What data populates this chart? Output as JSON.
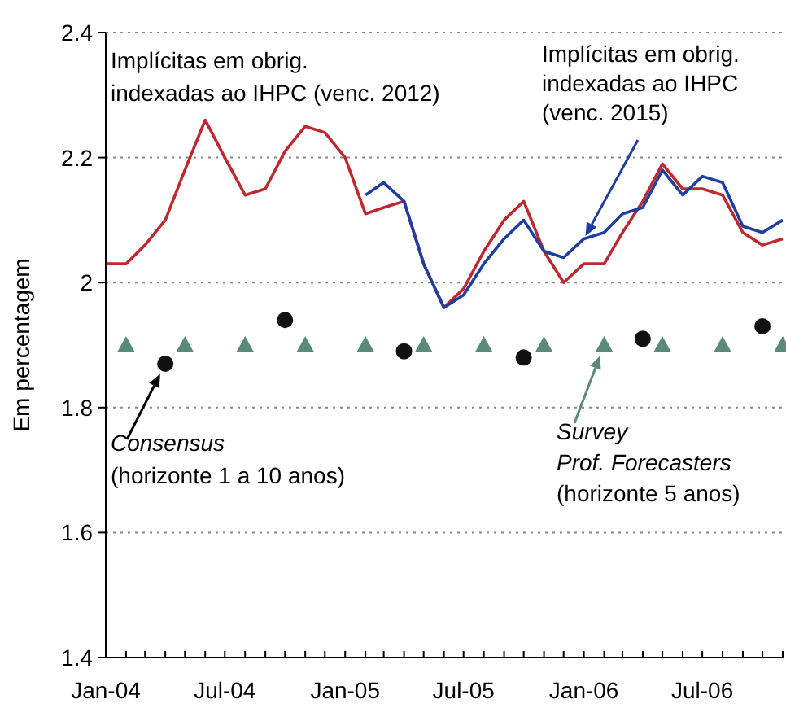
{
  "chart_data": {
    "type": "line",
    "ylabel": "Em percentagem",
    "xlim": [
      "2004-01",
      "2006-11"
    ],
    "ylim": [
      1.4,
      2.4
    ],
    "yticks": [
      1.4,
      1.6,
      1.8,
      2.0,
      2.2,
      2.4
    ],
    "grid": "y",
    "line_style": "solid",
    "marker": "none",
    "xticks": [
      {
        "value": "2004-01",
        "label": "Jan-04"
      },
      {
        "value": "2004-02",
        "label": null
      },
      {
        "value": "2004-03",
        "label": null
      },
      {
        "value": "2004-04",
        "label": null
      },
      {
        "value": "2004-05",
        "label": null
      },
      {
        "value": "2004-06",
        "label": null
      },
      {
        "value": "2004-07",
        "label": "Jul-04"
      },
      {
        "value": "2004-08",
        "label": null
      },
      {
        "value": "2004-09",
        "label": null
      },
      {
        "value": "2004-10",
        "label": null
      },
      {
        "value": "2004-11",
        "label": null
      },
      {
        "value": "2004-12",
        "label": null
      },
      {
        "value": "2005-01",
        "label": "Jan-05"
      },
      {
        "value": "2005-02",
        "label": null
      },
      {
        "value": "2005-03",
        "label": null
      },
      {
        "value": "2005-04",
        "label": null
      },
      {
        "value": "2005-05",
        "label": null
      },
      {
        "value": "2005-06",
        "label": null
      },
      {
        "value": "2005-07",
        "label": "Jul-05"
      },
      {
        "value": "2005-08",
        "label": null
      },
      {
        "value": "2005-09",
        "label": null
      },
      {
        "value": "2005-10",
        "label": null
      },
      {
        "value": "2005-11",
        "label": null
      },
      {
        "value": "2005-12",
        "label": null
      },
      {
        "value": "2006-01",
        "label": "Jan-06"
      },
      {
        "value": "2006-02",
        "label": null
      },
      {
        "value": "2006-03",
        "label": null
      },
      {
        "value": "2006-04",
        "label": null
      },
      {
        "value": "2006-05",
        "label": null
      },
      {
        "value": "2006-06",
        "label": null
      },
      {
        "value": "2006-07",
        "label": "Jul-06"
      },
      {
        "value": "2006-08",
        "label": null
      },
      {
        "value": "2006-09",
        "label": null
      },
      {
        "value": "2006-10",
        "label": null
      },
      {
        "value": "2006-11",
        "label": null
      }
    ],
    "series": [
      {
        "name": "Implícitas em obrig.\nindexadas ao IHPC (venc. 2012)",
        "color": "#c0282f",
        "x": [
          "2004-01",
          "2004-02",
          "2004-03",
          "2004-04",
          "2004-05",
          "2004-06",
          "2004-07",
          "2004-08",
          "2004-09",
          "2004-10",
          "2004-11",
          "2004-12",
          "2005-01",
          "2005-02",
          "2005-03",
          "2005-04",
          "2005-05",
          "2005-06",
          "2005-07",
          "2005-08",
          "2005-09",
          "2005-10",
          "2005-11",
          "2005-12",
          "2006-01",
          "2006-02",
          "2006-03",
          "2006-04",
          "2006-05",
          "2006-06",
          "2006-07",
          "2006-08",
          "2006-09",
          "2006-10",
          "2006-11"
        ],
        "values": [
          2.03,
          2.03,
          2.06,
          2.1,
          2.18,
          2.26,
          2.2,
          2.14,
          2.15,
          2.21,
          2.25,
          2.24,
          2.2,
          2.11,
          2.12,
          2.13,
          2.03,
          1.96,
          1.99,
          2.05,
          2.1,
          2.13,
          2.05,
          2.0,
          2.03,
          2.03,
          2.08,
          2.13,
          2.19,
          2.15,
          2.15,
          2.14,
          2.08,
          2.06,
          2.07
        ]
      },
      {
        "name": "Implícitas em obrig.\nindexadas ao IHPC\n(venc. 2015)",
        "color": "#1f3f9f",
        "x": [
          "2005-02",
          "2005-03",
          "2005-04",
          "2005-05",
          "2005-06",
          "2005-07",
          "2005-08",
          "2005-09",
          "2005-10",
          "2005-11",
          "2005-12",
          "2006-01",
          "2006-02",
          "2006-03",
          "2006-04",
          "2006-05",
          "2006-06",
          "2006-07",
          "2006-08",
          "2006-09",
          "2006-10",
          "2006-11"
        ],
        "values": [
          2.14,
          2.16,
          2.13,
          2.03,
          1.96,
          1.98,
          2.03,
          2.07,
          2.1,
          2.05,
          2.04,
          2.07,
          2.08,
          2.11,
          2.12,
          2.18,
          2.14,
          2.17,
          2.16,
          2.09,
          2.08,
          2.1
        ]
      },
      {
        "name": "Consensus\n(horizonte 1 a 10 anos)",
        "type": "scatter",
        "marker": "circle",
        "color": "#111111",
        "x": [
          "2004-04",
          "2004-10",
          "2005-04",
          "2005-10",
          "2006-04",
          "2006-10"
        ],
        "values": [
          1.87,
          1.94,
          1.89,
          1.88,
          1.91,
          1.93
        ]
      },
      {
        "name": "Survey\nProf. Forecasters\n(horizonte 5 anos)",
        "type": "scatter",
        "marker": "triangle",
        "color": "#5a8a78",
        "x": [
          "2004-02",
          "2004-05",
          "2004-08",
          "2004-11",
          "2005-02",
          "2005-05",
          "2005-08",
          "2005-11",
          "2006-02",
          "2006-05",
          "2006-08",
          "2006-11"
        ],
        "values": [
          1.9,
          1.9,
          1.9,
          1.9,
          1.9,
          1.9,
          1.9,
          1.9,
          1.9,
          1.9,
          1.9,
          1.9
        ]
      }
    ]
  }
}
